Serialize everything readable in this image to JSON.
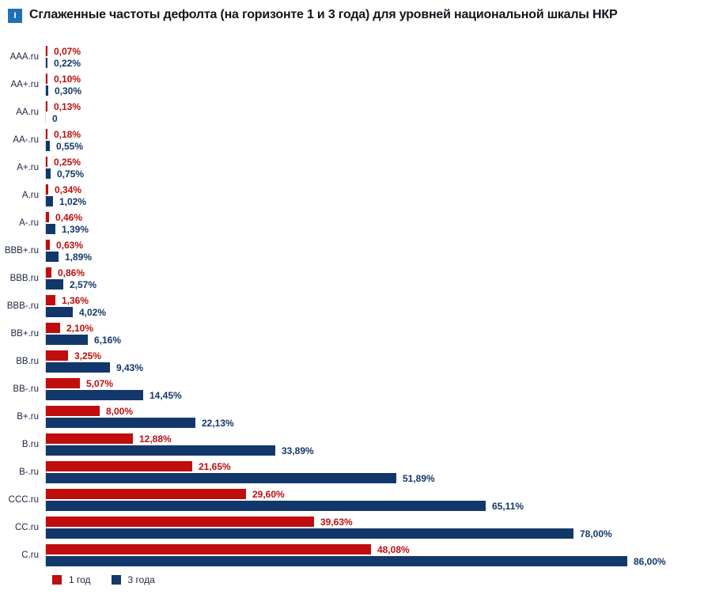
{
  "figure": {
    "marker": "I",
    "title": "Сглаженные частоты дефолта (на горизонте 1 и 3 года) для уровней национальной шкалы НКР"
  },
  "colors": {
    "one_year": "#c00d0d",
    "three_years": "#12386b",
    "marker_bg": "#2070b4",
    "axis_line": "#dcdcdc"
  },
  "chart_data": {
    "type": "bar",
    "orientation": "horizontal",
    "title": "Сглаженные частоты дефолта (на горизонте 1 и 3 года) для уровней национальной шкалы НКР",
    "xlabel": "",
    "ylabel": "",
    "xlim": [
      0,
      86
    ],
    "grid": false,
    "legend_position": "bottom",
    "categories": [
      "AAA.ru",
      "AA+.ru",
      "AA.ru",
      "AA-.ru",
      "A+.ru",
      "A.ru",
      "A-.ru",
      "BBB+.ru",
      "BBB.ru",
      "BBB-.ru",
      "BB+.ru",
      "BB.ru",
      "BB-.ru",
      "B+.ru",
      "B.ru",
      "B-.ru",
      "CCC.ru",
      "CC.ru",
      "C.ru"
    ],
    "series": [
      {
        "name": "1 год",
        "color": "#c00d0d",
        "values": [
          0.07,
          0.1,
          0.13,
          0.18,
          0.25,
          0.34,
          0.46,
          0.63,
          0.86,
          1.36,
          2.1,
          3.25,
          5.07,
          8.0,
          12.88,
          21.65,
          29.6,
          39.63,
          48.08
        ],
        "labels": [
          "0,07%",
          "0,10%",
          "0,13%",
          "0,18%",
          "0,25%",
          "0,34%",
          "0,46%",
          "0,63%",
          "0,86%",
          "1,36%",
          "2,10%",
          "3,25%",
          "5,07%",
          "8,00%",
          "12,88%",
          "21,65%",
          "29,60%",
          "39,63%",
          "48,08%"
        ]
      },
      {
        "name": "3 года",
        "color": "#12386b",
        "values": [
          0.22,
          0.3,
          0,
          0.55,
          0.75,
          1.02,
          1.39,
          1.89,
          2.57,
          4.02,
          6.16,
          9.43,
          14.45,
          22.13,
          33.89,
          51.89,
          65.11,
          78.0,
          86.0
        ],
        "labels": [
          "0,22%",
          "0,30%",
          "0",
          "0,55%",
          "0,75%",
          "1,02%",
          "1,39%",
          "1,89%",
          "2,57%",
          "4,02%",
          "6,16%",
          "9,43%",
          "14,45%",
          "22,13%",
          "33,89%",
          "51,89%",
          "65,11%",
          "78,00%",
          "86,00%"
        ]
      }
    ]
  },
  "legend": {
    "items": [
      {
        "label": "1 год",
        "color": "#c00d0d"
      },
      {
        "label": "3 года",
        "color": "#12386b"
      }
    ]
  }
}
